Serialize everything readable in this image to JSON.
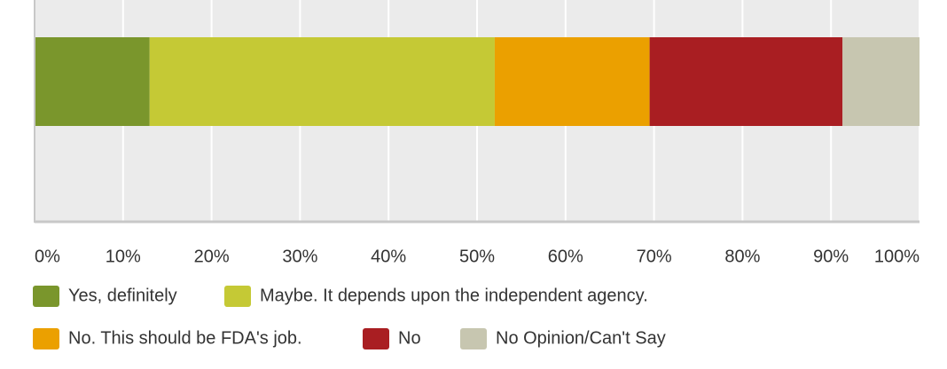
{
  "chart_data": {
    "type": "stacked-bar-horizontal",
    "categories": [
      null
    ],
    "series": [
      {
        "name": "Yes, definitely",
        "color": "#7a962c",
        "values": [
          13
        ]
      },
      {
        "name": "Maybe. It depends upon the independent agency.",
        "color": "#c5c935",
        "values": [
          39
        ]
      },
      {
        "name": "No. This should be FDA's job.",
        "color": "#eba000",
        "values": [
          17.5
        ]
      },
      {
        "name": "No",
        "color": "#a91e22",
        "values": [
          21.8
        ]
      },
      {
        "name": "No Opinion/Can't Say",
        "color": "#c7c6b0",
        "values": [
          8.7
        ]
      }
    ],
    "xlim": [
      0,
      100
    ],
    "xticks": [
      {
        "value": 0,
        "label": "0%"
      },
      {
        "value": 10,
        "label": "10%"
      },
      {
        "value": 20,
        "label": "20%"
      },
      {
        "value": 30,
        "label": "30%"
      },
      {
        "value": 40,
        "label": "40%"
      },
      {
        "value": 50,
        "label": "50%"
      },
      {
        "value": 60,
        "label": "60%"
      },
      {
        "value": 70,
        "label": "70%"
      },
      {
        "value": 80,
        "label": "80%"
      },
      {
        "value": 90,
        "label": "90%"
      },
      {
        "value": 100,
        "label": "100%"
      }
    ],
    "grid": true
  }
}
